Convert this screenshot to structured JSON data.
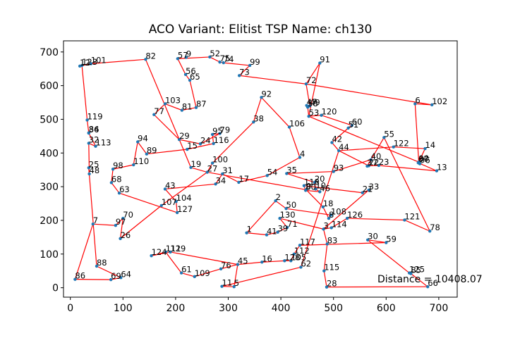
{
  "chart_data": {
    "type": "scatter",
    "title": "ACO Variant: Elitist      TSP Name: ch130",
    "xlabel": "",
    "ylabel": "",
    "xlim": [
      -13,
      735
    ],
    "ylim": [
      -28,
      733
    ],
    "xticks": [
      0,
      100,
      200,
      300,
      400,
      500,
      600,
      700
    ],
    "yticks": [
      0,
      100,
      200,
      300,
      400,
      500,
      600,
      700
    ],
    "grid": false,
    "annotation": "Distance = 10408.07",
    "point_color": "#1f77b4",
    "line_color": "#ff0000",
    "points": [
      {
        "id": "0",
        "x": 448,
        "y": 291
      },
      {
        "id": "1",
        "x": 335,
        "y": 163
      },
      {
        "id": "2",
        "x": 390,
        "y": 258
      },
      {
        "id": "3",
        "x": 481,
        "y": 174
      },
      {
        "id": "4",
        "x": 436,
        "y": 387
      },
      {
        "id": "5",
        "x": 311,
        "y": 3
      },
      {
        "id": "6",
        "x": 655,
        "y": 546
      },
      {
        "id": "7",
        "x": 43,
        "y": 189
      },
      {
        "id": "8",
        "x": 491,
        "y": 206
      },
      {
        "id": "9",
        "x": 220,
        "y": 684
      },
      {
        "id": "10",
        "x": 466,
        "y": 293
      },
      {
        "id": "11",
        "x": 288,
        "y": 4
      },
      {
        "id": "12",
        "x": 18,
        "y": 658
      },
      {
        "id": "13",
        "x": 696,
        "y": 347
      },
      {
        "id": "14",
        "x": 674,
        "y": 413
      },
      {
        "id": "15",
        "x": 222,
        "y": 411
      },
      {
        "id": "16",
        "x": 364,
        "y": 76
      },
      {
        "id": "17",
        "x": 320,
        "y": 313
      },
      {
        "id": "18",
        "x": 480,
        "y": 240
      },
      {
        "id": "19",
        "x": 229,
        "y": 357
      },
      {
        "id": "20",
        "x": 464,
        "y": 313
      },
      {
        "id": "21",
        "x": 555,
        "y": 282
      },
      {
        "id": "22",
        "x": 567,
        "y": 362
      },
      {
        "id": "23",
        "x": 586,
        "y": 363
      },
      {
        "id": "24",
        "x": 247,
        "y": 427
      },
      {
        "id": "25",
        "x": 35,
        "y": 356
      },
      {
        "id": "26",
        "x": 95,
        "y": 146
      },
      {
        "id": "27",
        "x": 260,
        "y": 343
      },
      {
        "id": "28",
        "x": 487,
        "y": 2
      },
      {
        "id": "29",
        "x": 207,
        "y": 440
      },
      {
        "id": "30",
        "x": 565,
        "y": 142
      },
      {
        "id": "31",
        "x": 289,
        "y": 338
      },
      {
        "id": "32",
        "x": 35,
        "y": 429
      },
      {
        "id": "33",
        "x": 567,
        "y": 290
      },
      {
        "id": "34",
        "x": 276,
        "y": 308
      },
      {
        "id": "35",
        "x": 411,
        "y": 339
      },
      {
        "id": "36",
        "x": 35,
        "y": 459
      },
      {
        "id": "37",
        "x": 564,
        "y": 361
      },
      {
        "id": "38",
        "x": 348,
        "y": 492
      },
      {
        "id": "39",
        "x": 394,
        "y": 165
      },
      {
        "id": "40",
        "x": 571,
        "y": 380
      },
      {
        "id": "41",
        "x": 373,
        "y": 157
      },
      {
        "id": "42",
        "x": 497,
        "y": 431
      },
      {
        "id": "43",
        "x": 180,
        "y": 293
      },
      {
        "id": "44",
        "x": 510,
        "y": 407
      },
      {
        "id": "45",
        "x": 318,
        "y": 69
      },
      {
        "id": "46",
        "x": 474,
        "y": 285
      },
      {
        "id": "47",
        "x": 449,
        "y": 541
      },
      {
        "id": "48",
        "x": 36,
        "y": 338
      },
      {
        "id": "49",
        "x": 455,
        "y": 540
      },
      {
        "id": "50",
        "x": 410,
        "y": 235
      },
      {
        "id": "51",
        "x": 528,
        "y": 474
      },
      {
        "id": "52",
        "x": 265,
        "y": 685
      },
      {
        "id": "53",
        "x": 453,
        "y": 509
      },
      {
        "id": "54",
        "x": 374,
        "y": 333
      },
      {
        "id": "55",
        "x": 596,
        "y": 446
      },
      {
        "id": "56",
        "x": 219,
        "y": 633
      },
      {
        "id": "57",
        "x": 204,
        "y": 680
      },
      {
        "id": "58",
        "x": 451,
        "y": 536
      },
      {
        "id": "59",
        "x": 600,
        "y": 134
      },
      {
        "id": "60",
        "x": 535,
        "y": 482
      },
      {
        "id": "61",
        "x": 211,
        "y": 44
      },
      {
        "id": "62",
        "x": 438,
        "y": 61
      },
      {
        "id": "63",
        "x": 93,
        "y": 281
      },
      {
        "id": "64",
        "x": 96,
        "y": 30
      },
      {
        "id": "65",
        "x": 227,
        "y": 616
      },
      {
        "id": "66",
        "x": 679,
        "y": 3
      },
      {
        "id": "67",
        "x": 661,
        "y": 371
      },
      {
        "id": "68",
        "x": 78,
        "y": 312
      },
      {
        "id": "69",
        "x": 77,
        "y": 24
      },
      {
        "id": "70",
        "x": 100,
        "y": 206
      },
      {
        "id": "71",
        "x": 412,
        "y": 179
      },
      {
        "id": "72",
        "x": 448,
        "y": 605
      },
      {
        "id": "73",
        "x": 321,
        "y": 630
      },
      {
        "id": "74",
        "x": 291,
        "y": 668
      },
      {
        "id": "75",
        "x": 284,
        "y": 670
      },
      {
        "id": "76",
        "x": 286,
        "y": 56
      },
      {
        "id": "77",
        "x": 159,
        "y": 514
      },
      {
        "id": "78",
        "x": 683,
        "y": 168
      },
      {
        "id": "79",
        "x": 284,
        "y": 458
      },
      {
        "id": "80",
        "x": 447,
        "y": 289
      },
      {
        "id": "81",
        "x": 212,
        "y": 527
      },
      {
        "id": "82",
        "x": 143,
        "y": 678
      },
      {
        "id": "83",
        "x": 488,
        "y": 130
      },
      {
        "id": "84",
        "x": 35,
        "y": 460
      },
      {
        "id": "85",
        "x": 647,
        "y": 42
      },
      {
        "id": "86",
        "x": 9,
        "y": 25
      },
      {
        "id": "87",
        "x": 239,
        "y": 535
      },
      {
        "id": "88",
        "x": 50,
        "y": 64
      },
      {
        "id": "89",
        "x": 145,
        "y": 397
      },
      {
        "id": "90",
        "x": 662,
        "y": 373
      },
      {
        "id": "91",
        "x": 474,
        "y": 667
      },
      {
        "id": "92",
        "x": 363,
        "y": 565
      },
      {
        "id": "93",
        "x": 500,
        "y": 345
      },
      {
        "id": "94",
        "x": 128,
        "y": 433
      },
      {
        "id": "95",
        "x": 270,
        "y": 455
      },
      {
        "id": "96",
        "x": 664,
        "y": 368
      },
      {
        "id": "97",
        "x": 86,
        "y": 185
      },
      {
        "id": "98",
        "x": 81,
        "y": 352
      },
      {
        "id": "99",
        "x": 341,
        "y": 660
      },
      {
        "id": "100",
        "x": 270,
        "y": 370
      },
      {
        "id": "101",
        "x": 39,
        "y": 665
      },
      {
        "id": "102",
        "x": 687,
        "y": 543
      },
      {
        "id": "103",
        "x": 180,
        "y": 546
      },
      {
        "id": "104",
        "x": 201,
        "y": 256
      },
      {
        "id": "105",
        "x": 419,
        "y": 80
      },
      {
        "id": "106",
        "x": 416,
        "y": 477
      },
      {
        "id": "107",
        "x": 173,
        "y": 244
      },
      {
        "id": "108",
        "x": 495,
        "y": 216
      },
      {
        "id": "109",
        "x": 236,
        "y": 33
      },
      {
        "id": "110",
        "x": 120,
        "y": 365
      },
      {
        "id": "111",
        "x": 181,
        "y": 106
      },
      {
        "id": "112",
        "x": 425,
        "y": 100
      },
      {
        "id": "113",
        "x": 48,
        "y": 420
      },
      {
        "id": "114",
        "x": 496,
        "y": 178
      },
      {
        "id": "115",
        "x": 482,
        "y": 50
      },
      {
        "id": "116",
        "x": 272,
        "y": 428
      },
      {
        "id": "117",
        "x": 436,
        "y": 126
      },
      {
        "id": "118",
        "x": 444,
        "y": 303
      },
      {
        "id": "119",
        "x": 32,
        "y": 498
      },
      {
        "id": "120",
        "x": 477,
        "y": 512
      },
      {
        "id": "121",
        "x": 635,
        "y": 201
      },
      {
        "id": "122",
        "x": 614,
        "y": 418
      },
      {
        "id": "123",
        "x": 22,
        "y": 660
      },
      {
        "id": "124",
        "x": 154,
        "y": 95
      },
      {
        "id": "125",
        "x": 644,
        "y": 44
      },
      {
        "id": "126",
        "x": 526,
        "y": 206
      },
      {
        "id": "127",
        "x": 203,
        "y": 223
      },
      {
        "id": "128",
        "x": 407,
        "y": 80
      },
      {
        "id": "129",
        "x": 190,
        "y": 106
      },
      {
        "id": "130",
        "x": 398,
        "y": 206
      }
    ],
    "tour": [
      "123",
      "12",
      "101",
      "82",
      "29",
      "24",
      "79",
      "95",
      "116",
      "15",
      "89",
      "94",
      "110",
      "98",
      "68",
      "63",
      "127",
      "104",
      "43",
      "34",
      "31",
      "17",
      "54",
      "4",
      "106",
      "92",
      "38",
      "100",
      "27",
      "0",
      "18",
      "8",
      "108",
      "50",
      "2",
      "1",
      "41",
      "39",
      "71",
      "130",
      "3",
      "114",
      "126",
      "121",
      "78",
      "55",
      "37",
      "40",
      "93",
      "35",
      "20",
      "10",
      "46",
      "80",
      "118",
      "21",
      "33",
      "3",
      "83",
      "115",
      "28",
      "66",
      "85",
      "125",
      "30",
      "59",
      "117",
      "112",
      "105",
      "128",
      "16",
      "45",
      "76",
      "109",
      "61",
      "111",
      "124",
      "129",
      "45",
      "5",
      "11",
      "62",
      "44",
      "42",
      "51",
      "60",
      "120",
      "53",
      "58",
      "47",
      "49",
      "72",
      "91",
      "53",
      "90",
      "96",
      "67",
      "13",
      "23",
      "22",
      "44",
      "122",
      "14",
      "90",
      "6",
      "102",
      "72",
      "73",
      "99",
      "74",
      "75",
      "52",
      "57",
      "56",
      "65",
      "87",
      "81",
      "103",
      "77",
      "29",
      "19",
      "27",
      "107",
      "26",
      "70",
      "97",
      "7",
      "86",
      "69",
      "64",
      "88",
      "25",
      "48",
      "32",
      "113",
      "36",
      "84",
      "119",
      "123"
    ]
  }
}
